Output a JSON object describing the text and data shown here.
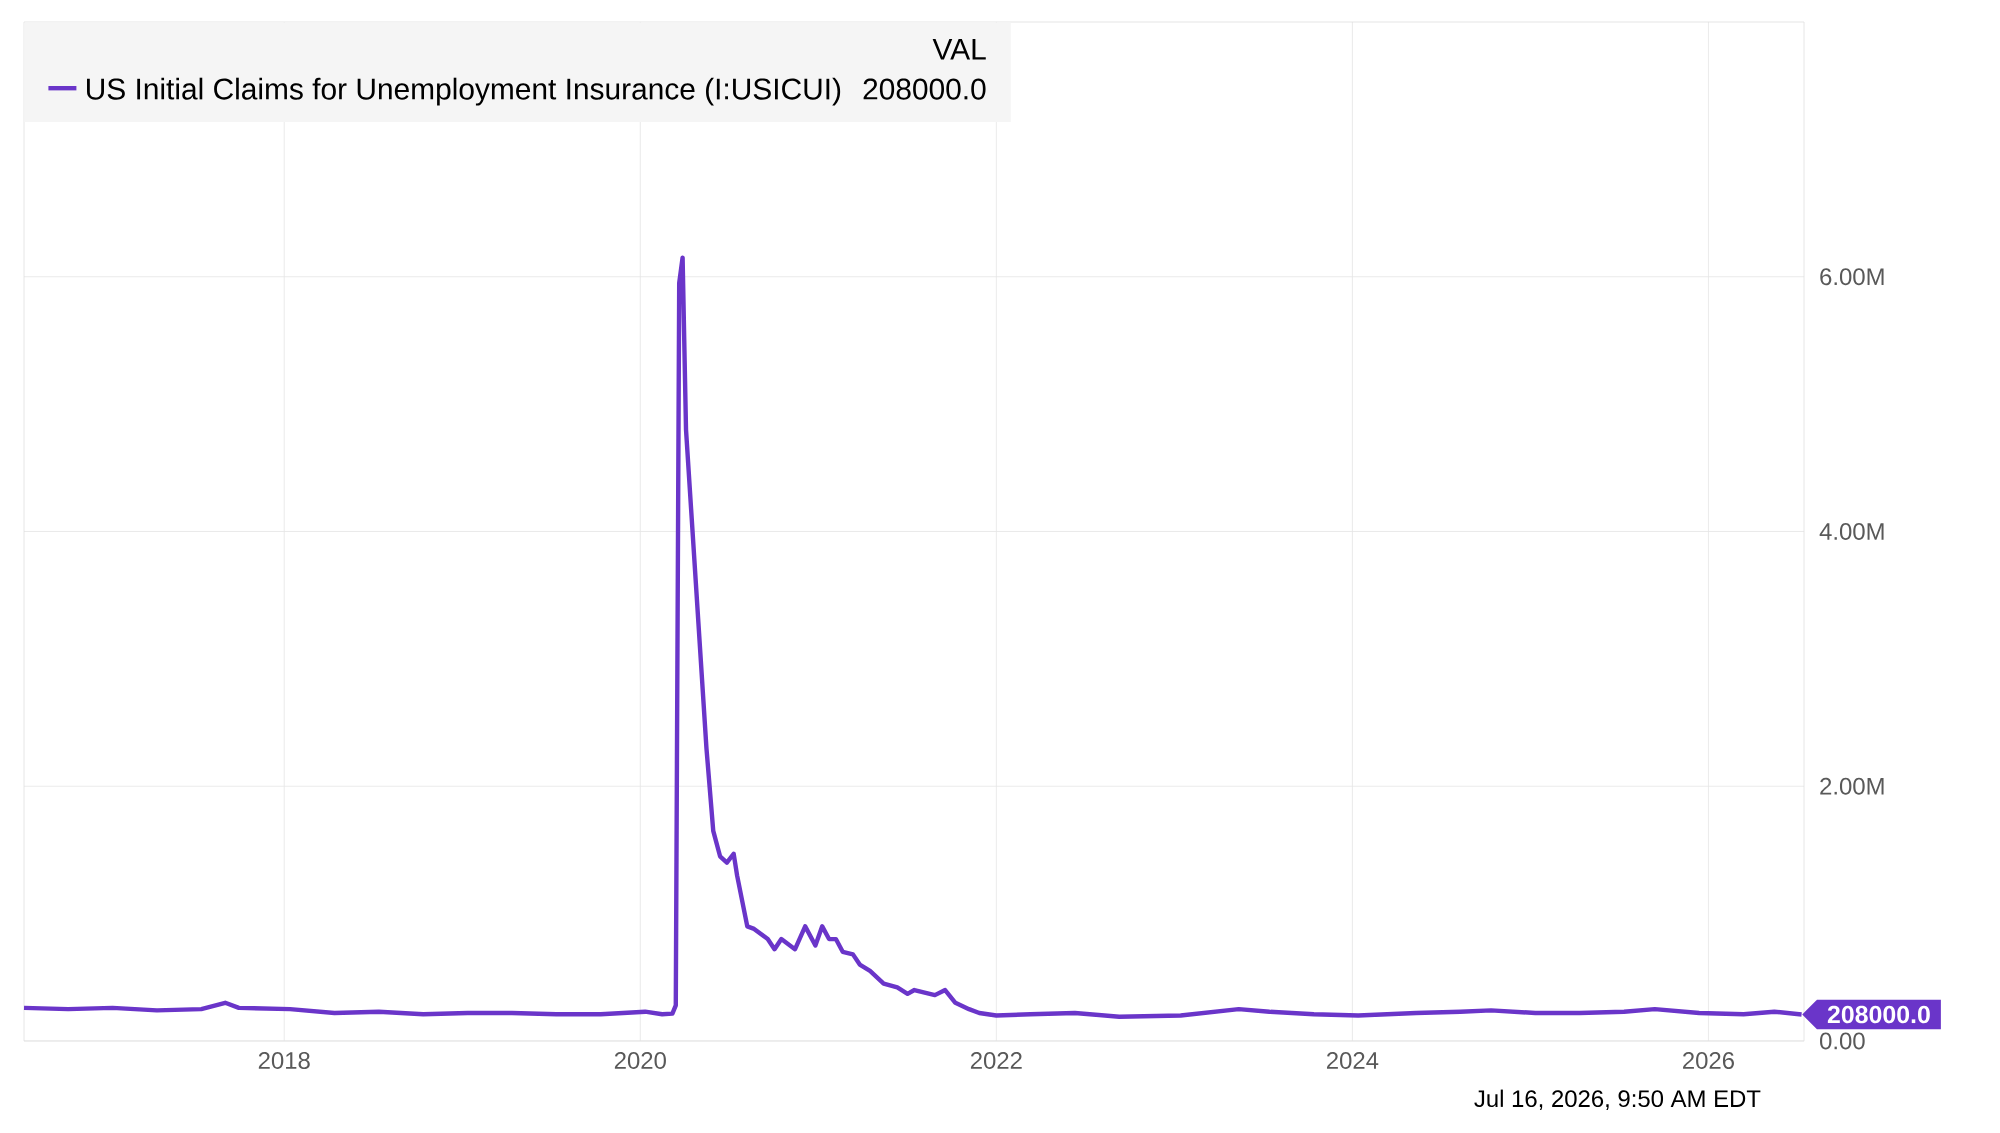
{
  "chart_data": {
    "type": "line",
    "legend_title": "VAL",
    "series": [
      {
        "name": "US Initial Claims for Unemployment Insurance (I:USICUI)",
        "color": "#6a35c9",
        "x": [
          "2016-07-16",
          "2016-10-15",
          "2017-01-14",
          "2017-04-15",
          "2017-07-15",
          "2017-09-02",
          "2017-09-30",
          "2018-01-13",
          "2018-04-14",
          "2018-07-14",
          "2018-10-13",
          "2019-01-12",
          "2019-04-13",
          "2019-07-13",
          "2019-10-12",
          "2020-01-11",
          "2020-02-15",
          "2020-03-07",
          "2020-03-14",
          "2020-03-21",
          "2020-03-28",
          "2020-04-04",
          "2020-05-16",
          "2020-05-30",
          "2020-06-13",
          "2020-06-27",
          "2020-07-11",
          "2020-07-18",
          "2020-08-08",
          "2020-08-22",
          "2020-09-19",
          "2020-10-03",
          "2020-10-17",
          "2020-11-14",
          "2020-12-05",
          "2020-12-26",
          "2021-01-09",
          "2021-01-23",
          "2021-02-06",
          "2021-02-20",
          "2021-03-13",
          "2021-03-27",
          "2021-04-17",
          "2021-05-15",
          "2021-06-12",
          "2021-07-03",
          "2021-07-17",
          "2021-08-28",
          "2021-09-18",
          "2021-10-09",
          "2021-11-06",
          "2021-11-27",
          "2022-01-01",
          "2022-03-12",
          "2022-06-11",
          "2022-09-10",
          "2023-01-14",
          "2023-05-13",
          "2023-07-15",
          "2023-10-14",
          "2024-01-13",
          "2024-05-11",
          "2024-08-10",
          "2024-10-12",
          "2025-01-11",
          "2025-04-12",
          "2025-07-12",
          "2025-09-13",
          "2025-12-13",
          "2026-03-14",
          "2026-05-16",
          "2026-07-11"
        ],
        "values": [
          260000,
          250000,
          260000,
          240000,
          250000,
          300000,
          260000,
          250000,
          220000,
          230000,
          210000,
          220000,
          220000,
          210000,
          210000,
          230000,
          210000,
          215000,
          280000,
          5950000,
          6150000,
          4800000,
          2300000,
          1650000,
          1450000,
          1400000,
          1470000,
          1300000,
          900000,
          880000,
          800000,
          720000,
          800000,
          720000,
          900000,
          750000,
          900000,
          800000,
          800000,
          700000,
          680000,
          600000,
          550000,
          450000,
          420000,
          370000,
          400000,
          360000,
          400000,
          300000,
          250000,
          220000,
          200000,
          210000,
          220000,
          190000,
          200000,
          250000,
          230000,
          210000,
          200000,
          220000,
          230000,
          240000,
          220000,
          220000,
          230000,
          250000,
          220000,
          210000,
          230000,
          208000
        ]
      }
    ],
    "xlim": [
      "2016-07-16",
      "2026-07-16"
    ],
    "xticks": [
      "2018",
      "2020",
      "2022",
      "2024",
      "2026"
    ],
    "ylim": [
      0,
      8000000
    ],
    "yticks": [
      {
        "value": 0,
        "label": "0.00"
      },
      {
        "value": 2000000,
        "label": "2.00M"
      },
      {
        "value": 4000000,
        "label": "4.00M"
      },
      {
        "value": 6000000,
        "label": "6.00M"
      }
    ],
    "grid": true,
    "legend": "top left",
    "marker": "none",
    "line_style": "solid",
    "annotations": [
      "208000.0",
      {
        "text": "208000.0",
        "x": "2026-07-11",
        "y": 208000
      },
      "Jul 16, 2026, 9:50 AM EDT"
    ]
  }
}
